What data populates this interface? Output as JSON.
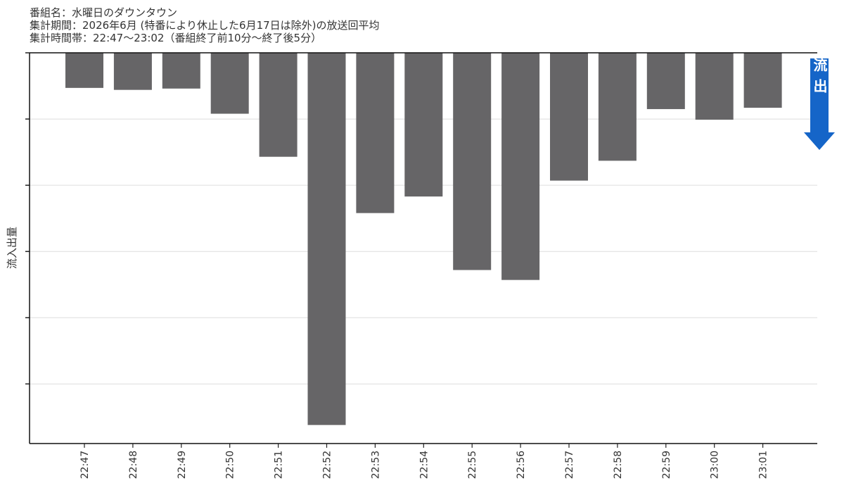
{
  "chart_data": {
    "type": "bar",
    "title_lines": [
      "番組名：水曜日のダウンタウン",
      "集計期間：2026年6月 (特番により休止した6月17日は除外)の放送回平均",
      "集計時間帯：22:47〜23:02（番組終了前10分〜終了後5分）"
    ],
    "y_label": "流入出量",
    "annotation": "流出",
    "annotation_color": "#1565c8",
    "categories": [
      "22:47",
      "22:48",
      "22:49",
      "22:50",
      "22:51",
      "22:52",
      "22:53",
      "22:54",
      "22:55",
      "22:56",
      "22:57",
      "22:58",
      "22:59",
      "23:00",
      "23:01"
    ],
    "values": [
      -0.53,
      -0.56,
      -0.54,
      -0.92,
      -1.57,
      -5.62,
      -2.42,
      -2.17,
      -3.28,
      -3.43,
      -1.93,
      -1.63,
      -0.85,
      -1.01,
      -0.83
    ],
    "color": "#666567",
    "ylim": [
      -5.9,
      0
    ],
    "yticks": [
      0,
      -1,
      -2,
      -3,
      -4,
      -5
    ],
    "grid": true
  }
}
